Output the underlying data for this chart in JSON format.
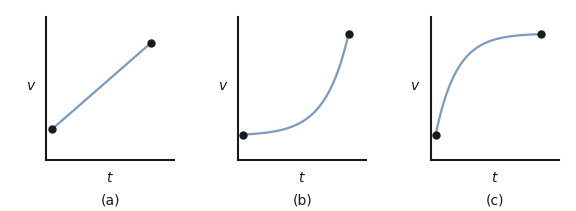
{
  "background_color": "#ffffff",
  "line_color": "#7a9bbf",
  "dot_color": "#1a1a1a",
  "axes_color": "#1a1a1a",
  "label_color": "#1a1a1a",
  "axis_label_fontsize": 10,
  "sublabel_fontsize": 10,
  "dot_size": 5,
  "line_width": 1.6,
  "panels": [
    "(a)",
    "(b)",
    "(c)"
  ]
}
